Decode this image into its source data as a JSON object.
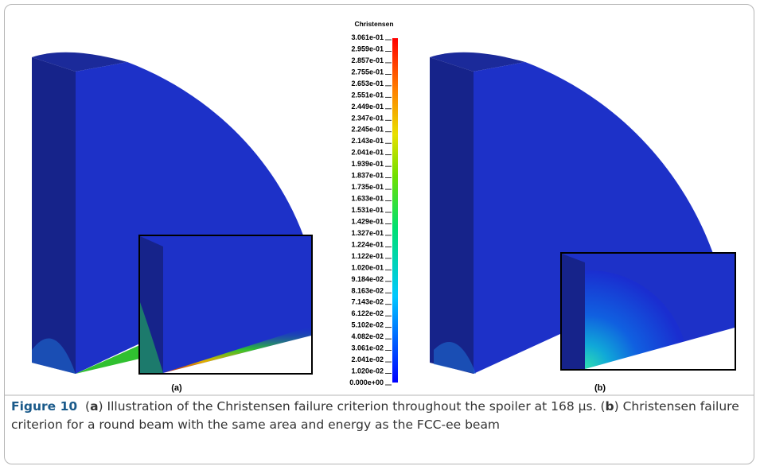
{
  "figure": {
    "colorbar": {
      "title": "Christensen",
      "ticks": [
        "3.061e-01",
        "2.959e-01",
        "2.857e-01",
        "2.755e-01",
        "2.653e-01",
        "2.551e-01",
        "2.449e-01",
        "2.347e-01",
        "2.245e-01",
        "2.143e-01",
        "2.041e-01",
        "1.939e-01",
        "1.837e-01",
        "1.735e-01",
        "1.633e-01",
        "1.531e-01",
        "1.429e-01",
        "1.327e-01",
        "1.224e-01",
        "1.122e-01",
        "1.020e-01",
        "9.184e-02",
        "8.163e-02",
        "7.143e-02",
        "6.122e-02",
        "5.102e-02",
        "4.082e-02",
        "3.061e-02",
        "2.041e-02",
        "1.020e-02",
        "0.000e+00"
      ]
    },
    "panels": [
      "(a)",
      "(b)"
    ],
    "caption": {
      "label": "Figure 10",
      "segments": [
        "(",
        "a",
        ") Illustration of the Christensen failure criterion throughout the spoiler at 168 μs. (",
        "b",
        ") Christensen failure criterion for a round beam with the same area and energy as the FCC-ee beam"
      ]
    }
  }
}
